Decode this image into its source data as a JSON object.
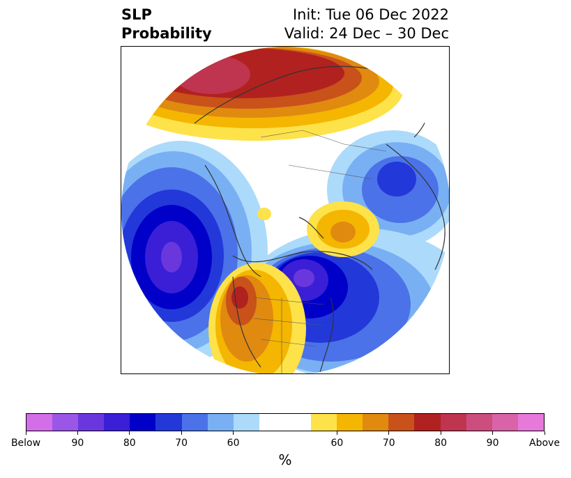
{
  "title": {
    "left_line1": "SLP",
    "left_line2": "Probability",
    "right_line1": "Init: Tue 06 Dec 2022",
    "right_line2": "Valid: 24 Dec – 30 Dec"
  },
  "colorbar": {
    "unit": "%",
    "colors": [
      "#d36ee9",
      "#9a56e6",
      "#6a37dd",
      "#3a1fd6",
      "#0000c8",
      "#2338d9",
      "#4b72e8",
      "#79b0f4",
      "#acdafa",
      "#ffffff",
      "#ffffff",
      "#fde24a",
      "#f4b600",
      "#e08a10",
      "#c9511a",
      "#b1211f",
      "#bf3550",
      "#cc4e7e",
      "#d963a8",
      "#e679d9"
    ],
    "tick_labels": [
      "Below",
      "90",
      "80",
      "70",
      "60",
      "60",
      "70",
      "80",
      "90",
      "Above"
    ]
  },
  "map": {
    "projection": "north polar stereographic",
    "features": [
      {
        "name": "north-pacific-low",
        "category": "below",
        "peak": "Below"
      },
      {
        "name": "eastern-canada-low",
        "category": "below",
        "peak": "90"
      },
      {
        "name": "eurasia-high",
        "category": "above",
        "peak": "90"
      },
      {
        "name": "western-us-high",
        "category": "above",
        "peak": "80"
      },
      {
        "name": "greenland-high",
        "category": "above",
        "peak": "70"
      },
      {
        "name": "central-asia-low",
        "category": "below",
        "peak": "80"
      }
    ]
  }
}
